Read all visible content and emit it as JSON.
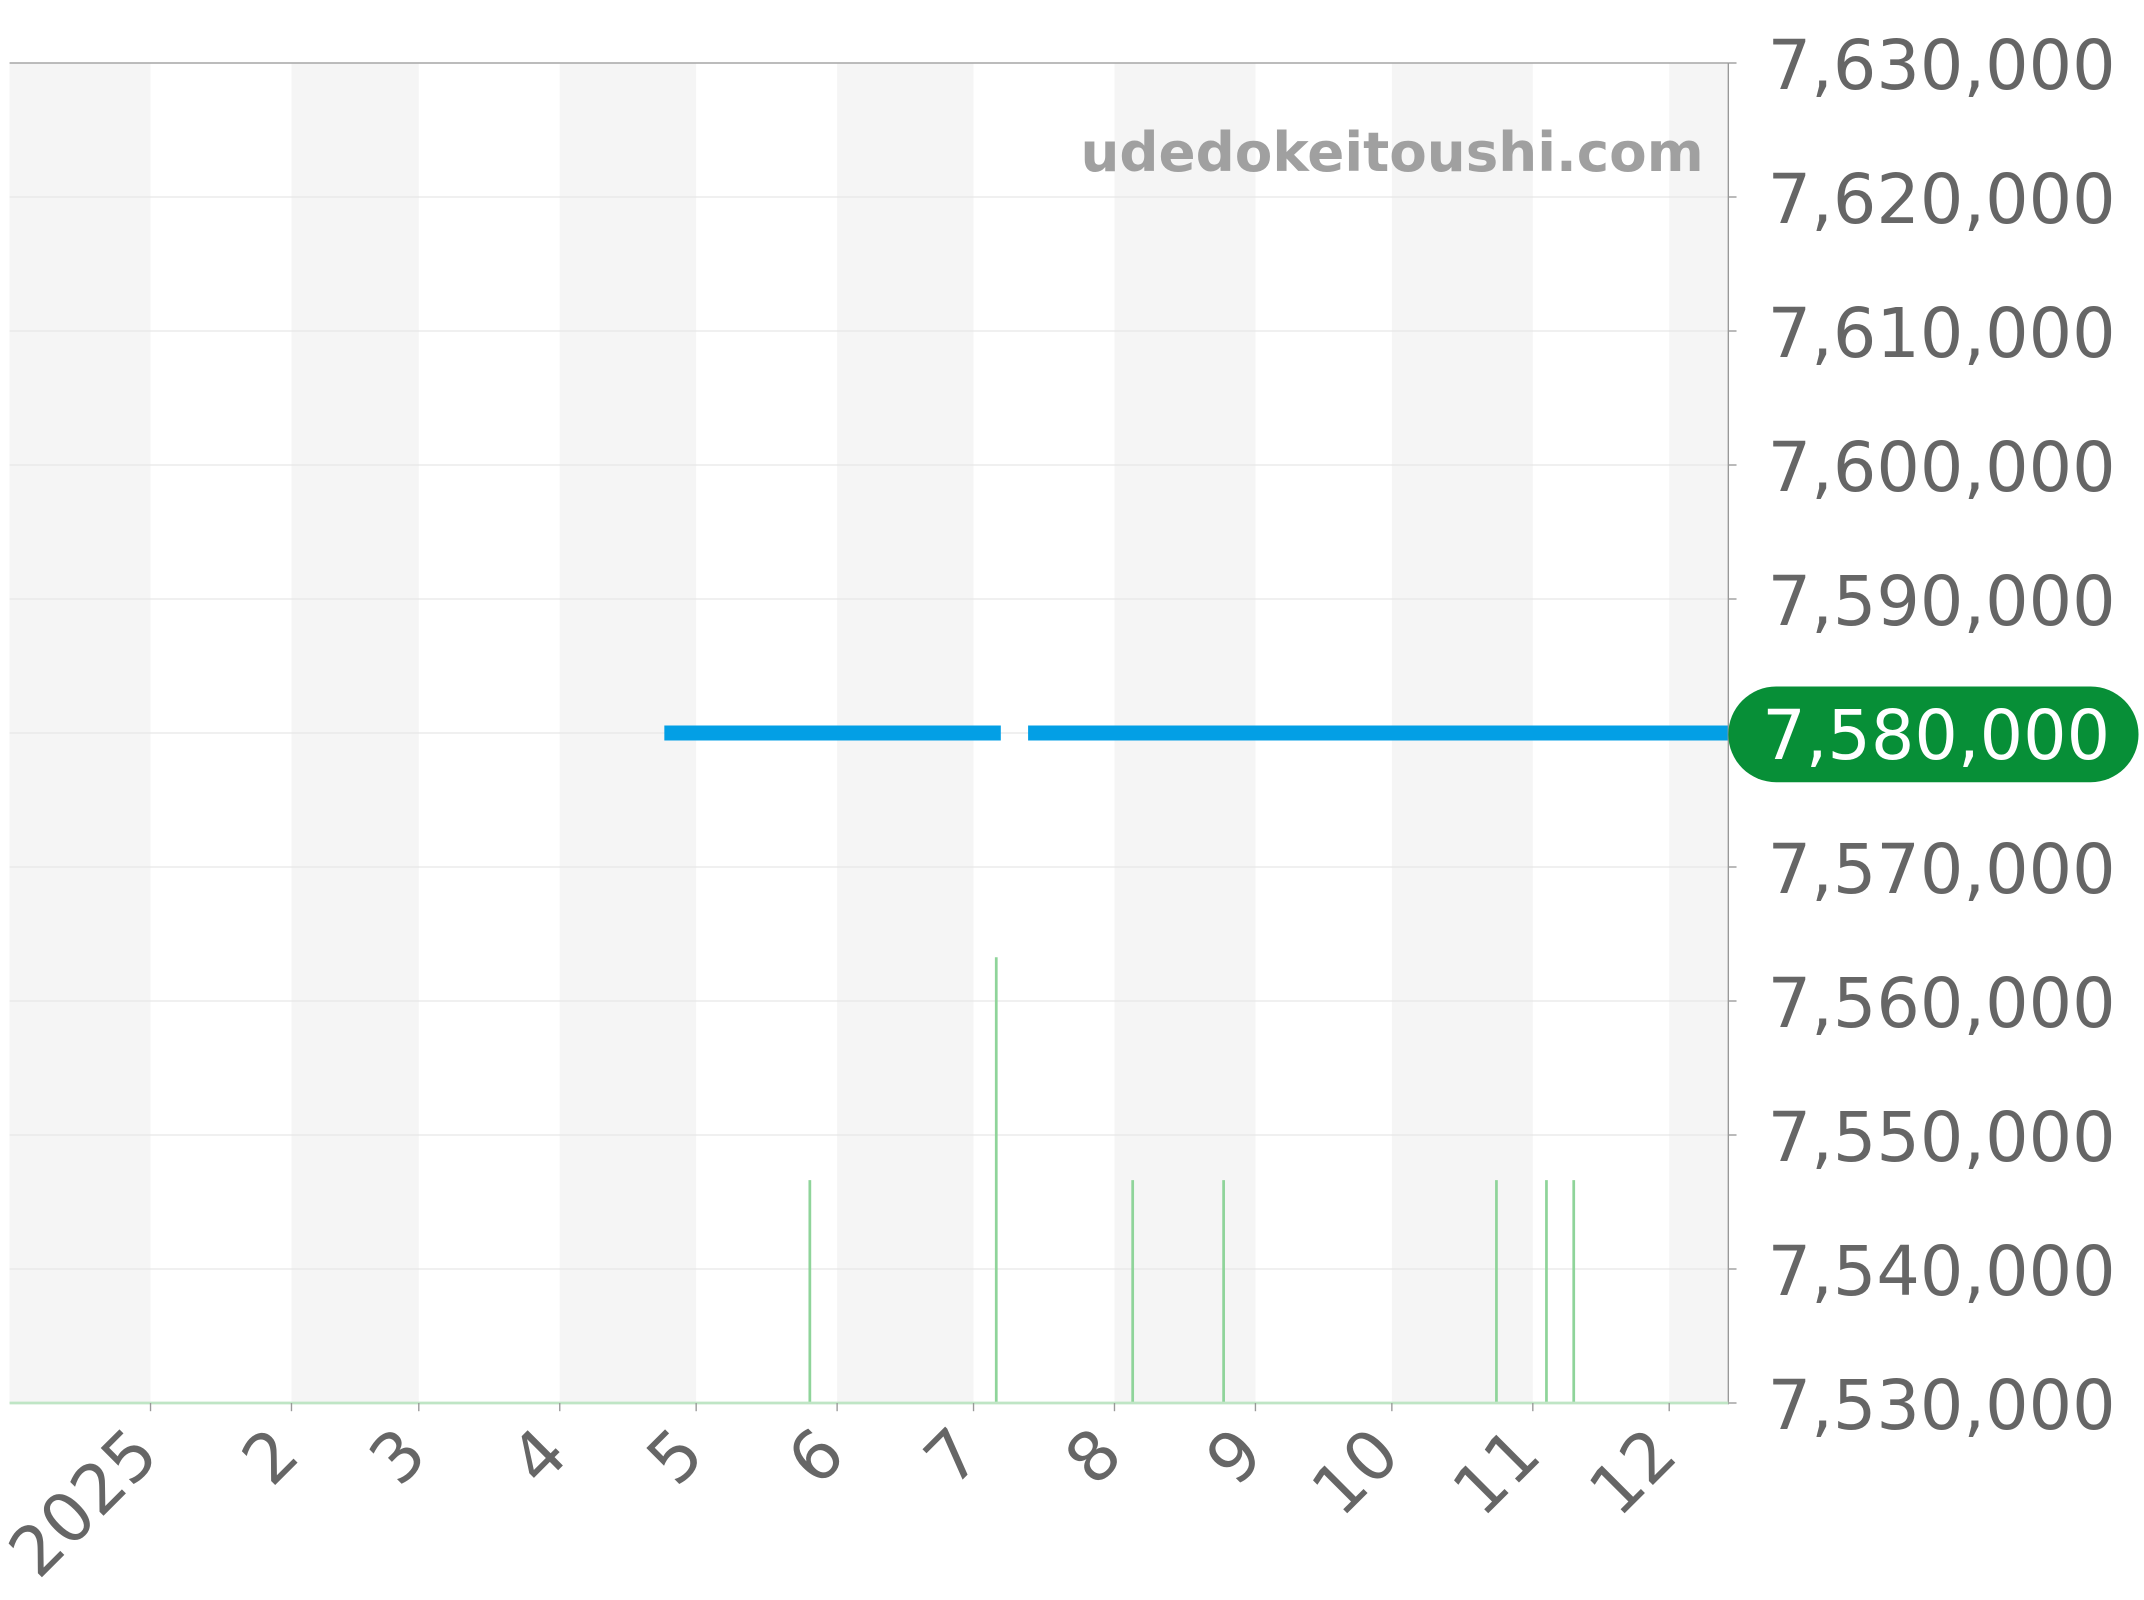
{
  "watermark": "udedokeitoushi.com",
  "chart_data": {
    "type": "line",
    "x_range": [
      "2024-12-01",
      "2025-12-14"
    ],
    "ylim": [
      7530000,
      7630000
    ],
    "y_ticks": [
      "7,630,000",
      "7,620,000",
      "7,610,000",
      "7,600,000",
      "7,590,000",
      "7,580,000",
      "7,570,000",
      "7,560,000",
      "7,550,000",
      "7,540,000",
      "7,530,000"
    ],
    "y_tick_values": [
      7630000,
      7620000,
      7610000,
      7600000,
      7590000,
      7580000,
      7570000,
      7560000,
      7550000,
      7540000,
      7530000
    ],
    "x_ticks": [
      {
        "date": "2025-01-01",
        "label": "2025"
      },
      {
        "date": "2025-02-01",
        "label": "2"
      },
      {
        "date": "2025-03-01",
        "label": "3"
      },
      {
        "date": "2025-04-01",
        "label": "4"
      },
      {
        "date": "2025-05-01",
        "label": "5"
      },
      {
        "date": "2025-06-01",
        "label": "6"
      },
      {
        "date": "2025-07-01",
        "label": "7"
      },
      {
        "date": "2025-08-01",
        "label": "8"
      },
      {
        "date": "2025-09-01",
        "label": "9"
      },
      {
        "date": "2025-10-01",
        "label": "10"
      },
      {
        "date": "2025-11-01",
        "label": "11"
      },
      {
        "date": "2025-12-01",
        "label": "12"
      }
    ],
    "grid": true,
    "series": [
      {
        "segments": [
          [
            [
              "2025-04-24",
              7580000
            ],
            [
              "2025-07-07",
              7580000
            ]
          ],
          [
            [
              "2025-07-13",
              7580000
            ],
            [
              "2025-12-14",
              7580000
            ]
          ]
        ],
        "color": "#039fe5"
      }
    ],
    "volume": {
      "color": "#8fd49a",
      "points": [
        {
          "date": "2025-05-26",
          "value": 1
        },
        {
          "date": "2025-07-06",
          "value": 2
        },
        {
          "date": "2025-08-05",
          "value": 1
        },
        {
          "date": "2025-08-25",
          "value": 1
        },
        {
          "date": "2025-10-24",
          "value": 1
        },
        {
          "date": "2025-11-04",
          "value": 1
        },
        {
          "date": "2025-11-10",
          "value": 1
        }
      ]
    },
    "current_price": {
      "value": 7580000,
      "label": "7,580,000",
      "color": "#078f37"
    }
  }
}
